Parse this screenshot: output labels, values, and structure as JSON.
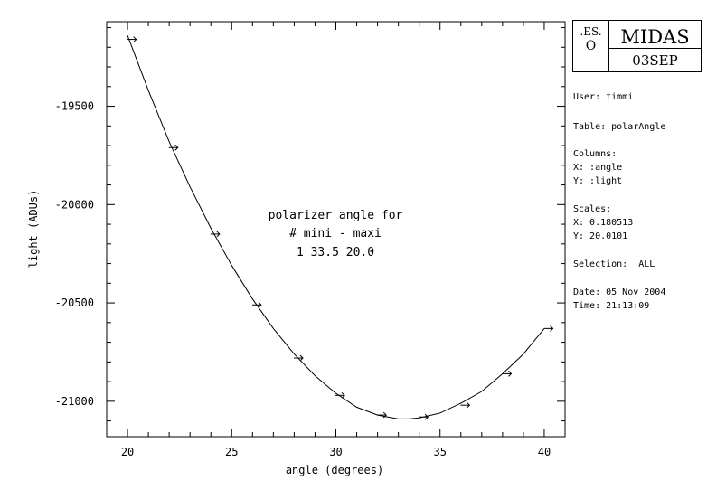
{
  "chart_data": {
    "type": "scatter",
    "xlabel": "angle (degrees)",
    "ylabel": "light (ADUs)",
    "xlim": [
      19.0,
      41.0
    ],
    "ylim": [
      -21180,
      -19070
    ],
    "xticks": [
      20,
      25,
      30,
      35,
      40
    ],
    "yticks": [
      -19500,
      -20000,
      -20500,
      -21000
    ],
    "grid": false,
    "series": [
      {
        "points": [
          {
            "x": 20.2,
            "y": -19160
          },
          {
            "x": 22.2,
            "y": -19710
          },
          {
            "x": 24.2,
            "y": -20150
          },
          {
            "x": 26.2,
            "y": -20510
          },
          {
            "x": 28.2,
            "y": -20780
          },
          {
            "x": 30.2,
            "y": -20970
          },
          {
            "x": 32.2,
            "y": -21070
          },
          {
            "x": 34.2,
            "y": -21080
          },
          {
            "x": 36.2,
            "y": -21020
          },
          {
            "x": 38.2,
            "y": -20860
          },
          {
            "x": 40.2,
            "y": -20630
          }
        ],
        "fit_curve": [
          {
            "x": 20.0,
            "y": -19140
          },
          {
            "x": 21.0,
            "y": -19420
          },
          {
            "x": 22.0,
            "y": -19680
          },
          {
            "x": 23.0,
            "y": -19910
          },
          {
            "x": 24.0,
            "y": -20120
          },
          {
            "x": 25.0,
            "y": -20310
          },
          {
            "x": 26.0,
            "y": -20480
          },
          {
            "x": 27.0,
            "y": -20630
          },
          {
            "x": 28.0,
            "y": -20760
          },
          {
            "x": 29.0,
            "y": -20870
          },
          {
            "x": 30.0,
            "y": -20960
          },
          {
            "x": 31.0,
            "y": -21030
          },
          {
            "x": 32.0,
            "y": -21070
          },
          {
            "x": 33.0,
            "y": -21090
          },
          {
            "x": 33.5,
            "y": -21090
          },
          {
            "x": 34.0,
            "y": -21085
          },
          {
            "x": 35.0,
            "y": -21060
          },
          {
            "x": 36.0,
            "y": -21010
          },
          {
            "x": 37.0,
            "y": -20950
          },
          {
            "x": 38.0,
            "y": -20860
          },
          {
            "x": 39.0,
            "y": -20760
          },
          {
            "x": 40.0,
            "y": -20630
          }
        ]
      }
    ],
    "annotation": [
      "polarizer angle for",
      "# mini - maxi",
      "1 33.5 20.0"
    ]
  },
  "logo": {
    "eso": ".ES.",
    "mark": "O",
    "app_name": "MIDAS",
    "date_code": "03SEP"
  },
  "info": {
    "user": "User: timmi",
    "table": "Table: polarAngle",
    "columns": "Columns:",
    "col_x": "X: :angle",
    "col_y": "Y: :light",
    "scales": "Scales:",
    "scale_x": "X: 0.180513",
    "scale_y": "Y: 20.0101",
    "selection": "Selection:  ALL",
    "date": "Date: 05 Nov 2004",
    "time": "Time: 21:13:09"
  }
}
